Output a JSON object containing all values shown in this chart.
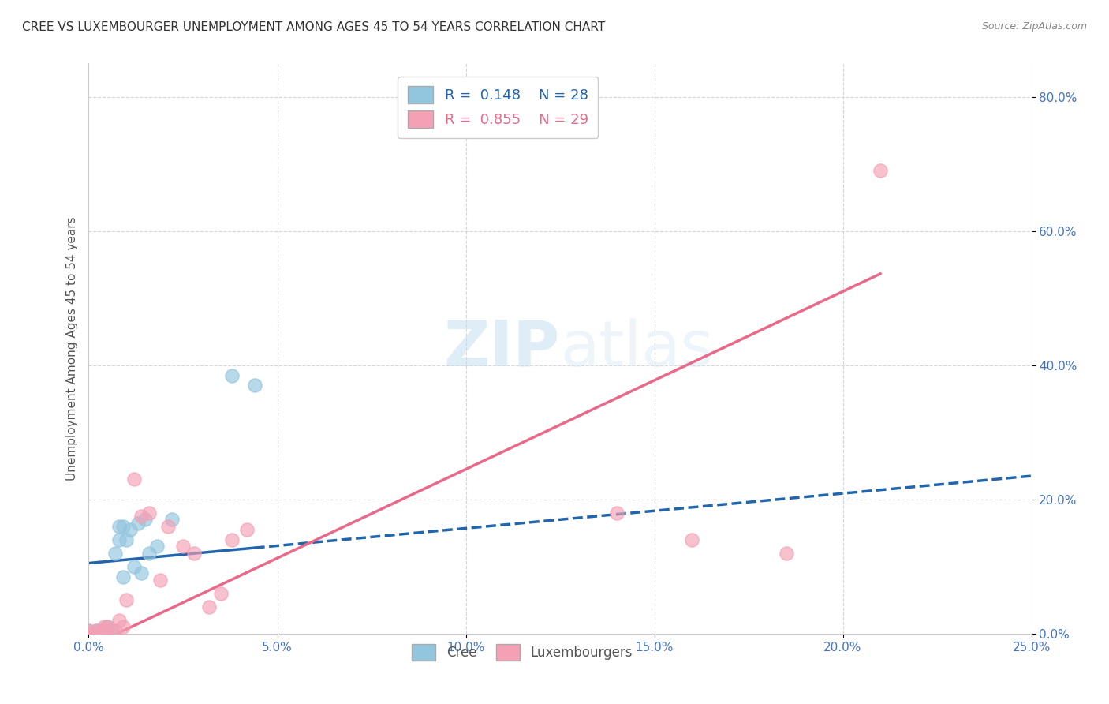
{
  "title": "CREE VS LUXEMBOURGER UNEMPLOYMENT AMONG AGES 45 TO 54 YEARS CORRELATION CHART",
  "source": "Source: ZipAtlas.com",
  "ylabel_label": "Unemployment Among Ages 45 to 54 years",
  "legend_label_cree": "Cree",
  "legend_label_lux": "Luxembourgers",
  "r_cree": "0.148",
  "n_cree": "28",
  "r_lux": "0.855",
  "n_lux": "29",
  "xlim": [
    0.0,
    0.25
  ],
  "ylim": [
    0.0,
    0.85
  ],
  "xticks": [
    0.0,
    0.05,
    0.1,
    0.15,
    0.2,
    0.25
  ],
  "yticks": [
    0.0,
    0.2,
    0.4,
    0.6,
    0.8
  ],
  "cree_color": "#92c5de",
  "lux_color": "#f4a0b5",
  "cree_line_color": "#2166ac",
  "lux_line_color": "#e8698a",
  "watermark_zip": "ZIP",
  "watermark_atlas": "atlas",
  "cree_x": [
    0.0,
    0.0,
    0.001,
    0.002,
    0.002,
    0.003,
    0.003,
    0.004,
    0.004,
    0.005,
    0.005,
    0.006,
    0.007,
    0.008,
    0.008,
    0.009,
    0.009,
    0.01,
    0.011,
    0.012,
    0.013,
    0.014,
    0.015,
    0.016,
    0.018,
    0.022,
    0.038,
    0.044
  ],
  "cree_y": [
    0.0,
    0.005,
    0.0,
    0.0,
    0.005,
    0.0,
    0.005,
    0.0,
    0.005,
    0.0,
    0.01,
    0.005,
    0.12,
    0.14,
    0.16,
    0.085,
    0.16,
    0.14,
    0.155,
    0.1,
    0.165,
    0.09,
    0.17,
    0.12,
    0.13,
    0.17,
    0.385,
    0.37
  ],
  "lux_x": [
    0.0,
    0.0,
    0.001,
    0.002,
    0.002,
    0.003,
    0.004,
    0.004,
    0.005,
    0.006,
    0.007,
    0.008,
    0.009,
    0.01,
    0.012,
    0.014,
    0.016,
    0.019,
    0.021,
    0.025,
    0.028,
    0.032,
    0.035,
    0.038,
    0.042,
    0.14,
    0.16,
    0.185,
    0.21
  ],
  "lux_y": [
    0.0,
    0.005,
    0.0,
    0.0,
    0.005,
    0.0,
    0.005,
    0.01,
    0.01,
    0.0,
    0.005,
    0.02,
    0.01,
    0.05,
    0.23,
    0.175,
    0.18,
    0.08,
    0.16,
    0.13,
    0.12,
    0.04,
    0.06,
    0.14,
    0.155,
    0.18,
    0.14,
    0.12,
    0.69
  ],
  "cree_intercept": 0.105,
  "cree_slope": 0.52,
  "lux_intercept": -0.02,
  "lux_slope": 2.65
}
